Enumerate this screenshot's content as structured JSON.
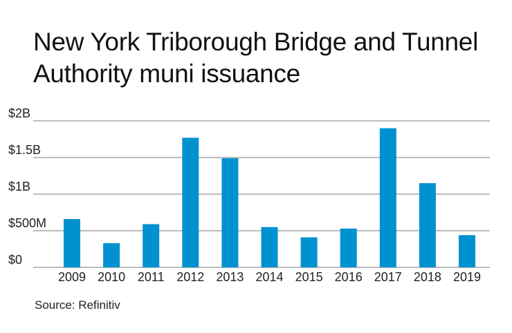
{
  "chart_data": {
    "type": "bar",
    "title": "New York Triborough Bridge and Tunnel Authority muni issuance",
    "source": "Source: Refinitiv",
    "categories": [
      "2009",
      "2010",
      "2011",
      "2012",
      "2013",
      "2014",
      "2015",
      "2016",
      "2017",
      "2018",
      "2019"
    ],
    "series": [
      {
        "name": "Issuance ($M)",
        "values": [
          660,
          330,
          590,
          1770,
          1490,
          550,
          410,
          530,
          1900,
          1150,
          440
        ]
      }
    ],
    "ylim": [
      0,
      2000
    ],
    "yticks": [
      0,
      500,
      1000,
      1500,
      2000
    ],
    "ytick_labels": [
      "$0",
      "$500M",
      "$1B",
      "$1.5B",
      "$2B"
    ],
    "xlabel": "",
    "ylabel": "",
    "grid": true,
    "bar_color": "#0092d0",
    "grid_color": "#7a7a7a"
  }
}
